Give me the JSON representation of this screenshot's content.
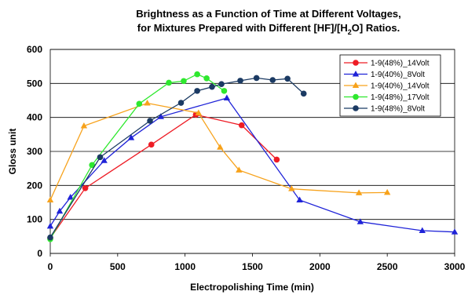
{
  "chart_data": {
    "type": "line",
    "title_line1": "Brightness as a Function of Time at Different Voltages,",
    "title_line2_pre": "for Mixtures Prepared with Different [HF]/[H",
    "title_line2_sub": "2",
    "title_line2_post": "O] Ratios.",
    "xlabel": "Electropolishing Time (min)",
    "ylabel": "Gloss unit",
    "xlim": [
      0,
      3000
    ],
    "ylim": [
      0,
      600
    ],
    "xticks": [
      "0",
      "500",
      "1000",
      "1500",
      "2000",
      "2500",
      "3000"
    ],
    "yticks": [
      "0",
      "100",
      "200",
      "300",
      "400",
      "500",
      "600"
    ],
    "grid": "horizontal",
    "legend_position": "top-right",
    "series": [
      {
        "name": "1-9(48%)_14Volt",
        "color": "#ee1c25",
        "marker": "circle",
        "x": [
          0,
          260,
          750,
          1080,
          1420,
          1680
        ],
        "y": [
          45,
          192,
          320,
          408,
          377,
          276
        ]
      },
      {
        "name": "1-9(40%)_8Volt",
        "color": "#1f23d8",
        "marker": "triangle",
        "x": [
          0,
          70,
          150,
          400,
          600,
          820,
          1310,
          1850,
          2300,
          2760,
          3000
        ],
        "y": [
          80,
          124,
          165,
          273,
          340,
          402,
          457,
          157,
          93,
          67,
          63
        ]
      },
      {
        "name": "1-9(40%)_14Volt",
        "color": "#f7a21b",
        "marker": "triangle",
        "x": [
          0,
          250,
          720,
          1100,
          1260,
          1400,
          1790,
          2290,
          2500
        ],
        "y": [
          157,
          375,
          442,
          413,
          312,
          245,
          190,
          178,
          179
        ]
      },
      {
        "name": "1-9(48%)_17Volt",
        "color": "#2ee82e",
        "marker": "circle",
        "x": [
          0,
          310,
          660,
          880,
          990,
          1090,
          1160,
          1290
        ],
        "y": [
          42,
          260,
          440,
          502,
          507,
          527,
          515,
          478
        ]
      },
      {
        "name": "1-9(48%)_8Volt",
        "color": "#1b3a63",
        "marker": "circle",
        "x": [
          0,
          370,
          740,
          970,
          1090,
          1200,
          1270,
          1410,
          1530,
          1650,
          1760,
          1880
        ],
        "y": [
          47,
          283,
          390,
          443,
          478,
          490,
          498,
          508,
          516,
          510,
          514,
          470
        ]
      }
    ]
  }
}
